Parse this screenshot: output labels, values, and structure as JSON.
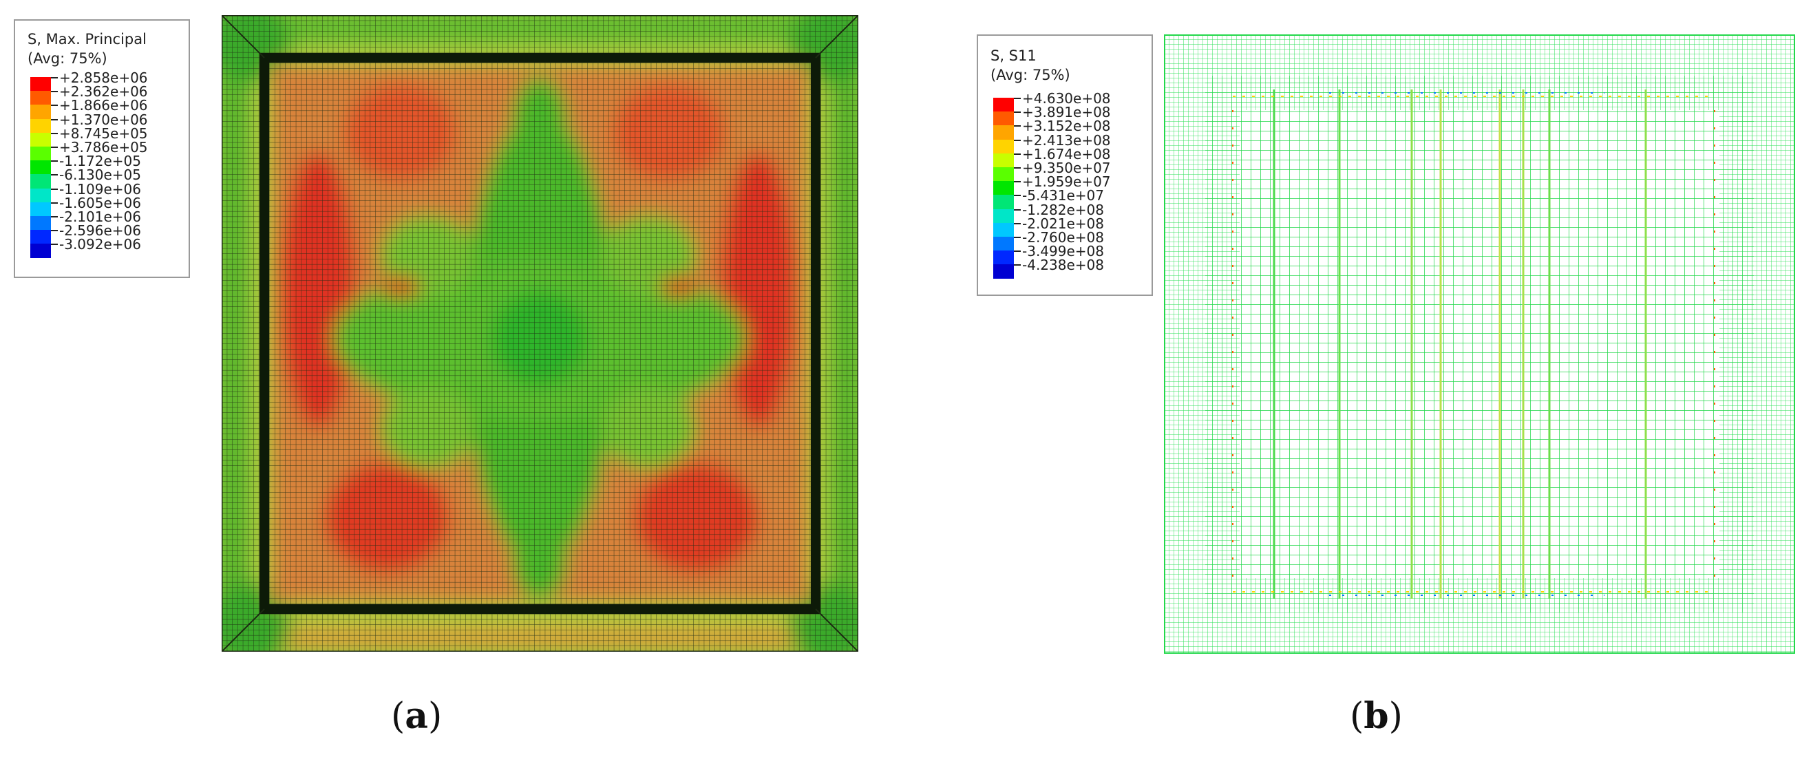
{
  "figure": {
    "panels": [
      {
        "id": "a",
        "caption_open": "(",
        "caption_letter": "a",
        "caption_close": ")",
        "legend": {
          "title": "S, Max. Principal",
          "subtitle": "(Avg: 75%)",
          "values": [
            "+2.858e+06",
            "+2.362e+06",
            "+1.866e+06",
            "+1.370e+06",
            "+8.745e+05",
            "+3.786e+05",
            "-1.172e+05",
            "-6.130e+05",
            "-1.109e+06",
            "-1.605e+06",
            "-2.101e+06",
            "-2.596e+06",
            "-3.092e+06"
          ]
        },
        "plot_style": "filled-contour-on-mesh"
      },
      {
        "id": "b",
        "caption_open": "(",
        "caption_letter": "b",
        "caption_close": ")",
        "legend": {
          "title": "S, S11",
          "subtitle": "(Avg: 75%)",
          "values": [
            "+4.630e+08",
            "+3.891e+08",
            "+3.152e+08",
            "+2.413e+08",
            "+1.674e+08",
            "+9.350e+07",
            "+1.959e+07",
            "-5.431e+07",
            "-1.282e+08",
            "-2.021e+08",
            "-2.760e+08",
            "-3.499e+08",
            "-4.238e+08"
          ]
        },
        "plot_style": "wireframe-mesh"
      }
    ],
    "legend_colors": [
      "#ff0000",
      "#ff5a00",
      "#ffa500",
      "#ffd300",
      "#c8ff00",
      "#5aff00",
      "#00e600",
      "#00e676",
      "#00e6c8",
      "#00c8ff",
      "#0078ff",
      "#0028ff",
      "#0000d2"
    ]
  }
}
